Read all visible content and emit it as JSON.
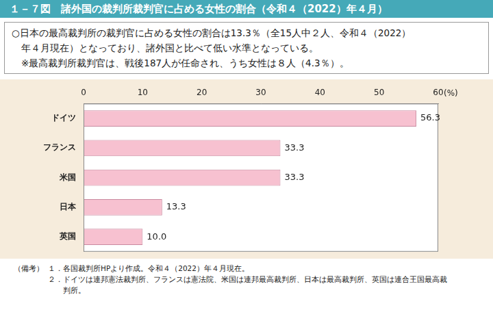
{
  "chart_data": {
    "type": "bar",
    "orientation": "horizontal",
    "title": "１－７図　諸外国の裁判所裁判官に占める女性の割合（令和４（2022）年４月）",
    "subtitle": [
      "○日本の最高裁判所の裁判官に占める女性の割合は13.3％（全15人中２人、令和４（2022）",
      "　年４月現在）となっており、諸外国と比べて低い水準となっている。",
      "　※最高裁判所裁判官は、戦後187人が任命され、うち女性は８人（4.3％）。"
    ],
    "x_label": "(%)",
    "categories": [
      "ドイツ",
      "フランス",
      "米国",
      "日本",
      "英国"
    ],
    "values": [
      56.3,
      33.3,
      33.3,
      13.3,
      10.0
    ],
    "value_labels": [
      "56.3",
      "33.3",
      "33.3",
      "13.3",
      "10.0"
    ],
    "color": "#f7c1d0",
    "xlim": [
      0,
      60
    ],
    "xticks": [
      0,
      10,
      20,
      30,
      40,
      50,
      60
    ],
    "grid": false,
    "data_labels": true,
    "notes_label": "（備考）",
    "notes": [
      [
        "１．各国裁判所HPより作成。令和４（2022）年４月現在。"
      ],
      [
        "２．ドイツは連邦憲法裁判所、フランスは憲法院、米国は連邦最高裁判所、日本は最高裁判所、英国は連合王国最高裁",
        "　　判所。"
      ]
    ]
  }
}
